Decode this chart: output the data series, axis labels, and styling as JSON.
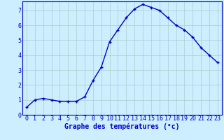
{
  "x": [
    0,
    1,
    2,
    3,
    4,
    5,
    6,
    7,
    8,
    9,
    10,
    11,
    12,
    13,
    14,
    15,
    16,
    17,
    18,
    19,
    20,
    21,
    22,
    23
  ],
  "y": [
    0.5,
    1.0,
    1.1,
    1.0,
    0.9,
    0.9,
    0.9,
    1.2,
    2.3,
    3.2,
    4.9,
    5.7,
    6.5,
    7.1,
    7.4,
    7.2,
    7.0,
    6.5,
    6.0,
    5.7,
    5.2,
    4.5,
    4.0,
    3.5
  ],
  "line_color": "#0000cc",
  "marker": "+",
  "marker_size": 3,
  "marker_lw": 1.0,
  "line_width": 1.0,
  "bg_color": "#cceeff",
  "grid_color": "#aacccc",
  "xlabel": "Graphe des températures (°c)",
  "xlabel_color": "#0000cc",
  "xlabel_fontsize": 7,
  "tick_color": "#0000cc",
  "tick_fontsize": 6,
  "ylim": [
    0,
    7.6
  ],
  "xlim": [
    -0.5,
    23.5
  ],
  "yticks": [
    0,
    1,
    2,
    3,
    4,
    5,
    6,
    7
  ],
  "xticks": [
    0,
    1,
    2,
    3,
    4,
    5,
    6,
    7,
    8,
    9,
    10,
    11,
    12,
    13,
    14,
    15,
    16,
    17,
    18,
    19,
    20,
    21,
    22,
    23
  ]
}
